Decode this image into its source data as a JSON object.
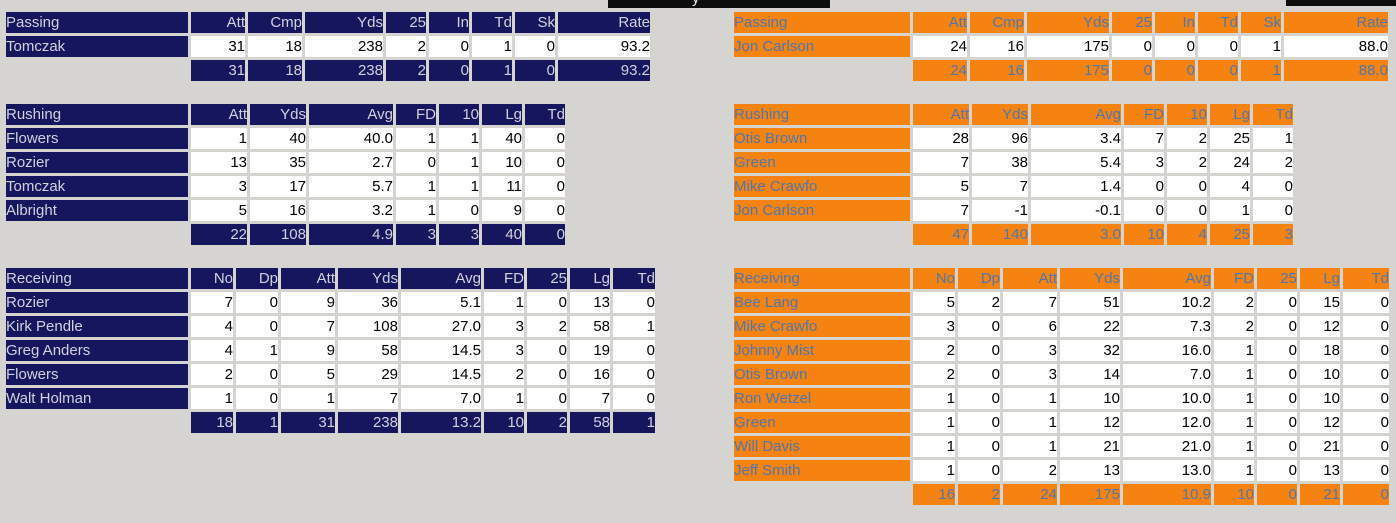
{
  "page": {
    "background_color": "#d6d4d1"
  },
  "scoreboard_bars": {
    "background_color": "#0d0d0d",
    "clipped_text_fragment": "y"
  },
  "left_team": {
    "theme": {
      "accent_bg": "#16165f",
      "accent_text": "#d2d2dc",
      "cell_bg": "#ffffff",
      "cell_text": "#000000"
    },
    "passing": {
      "label": "Passing",
      "columns": [
        "Att",
        "Cmp",
        "Yds",
        "25",
        "In",
        "Td",
        "Sk",
        "Rate"
      ],
      "rows": [
        {
          "name": "Tomczak",
          "values": [
            "31",
            "18",
            "238",
            "2",
            "0",
            "1",
            "0",
            "93.2"
          ]
        }
      ],
      "totals": [
        "31",
        "18",
        "238",
        "2",
        "0",
        "1",
        "0",
        "93.2"
      ]
    },
    "rushing": {
      "label": "Rushing",
      "columns": [
        "Att",
        "Yds",
        "Avg",
        "FD",
        "10",
        "Lg",
        "Td"
      ],
      "rows": [
        {
          "name": "Flowers",
          "values": [
            "1",
            "40",
            "40.0",
            "1",
            "1",
            "40",
            "0"
          ]
        },
        {
          "name": "Rozier",
          "values": [
            "13",
            "35",
            "2.7",
            "0",
            "1",
            "10",
            "0"
          ]
        },
        {
          "name": "Tomczak",
          "values": [
            "3",
            "17",
            "5.7",
            "1",
            "1",
            "11",
            "0"
          ]
        },
        {
          "name": "Albright",
          "values": [
            "5",
            "16",
            "3.2",
            "1",
            "0",
            "9",
            "0"
          ]
        }
      ],
      "totals": [
        "22",
        "108",
        "4.9",
        "3",
        "3",
        "40",
        "0"
      ]
    },
    "receiving": {
      "label": "Receiving",
      "columns": [
        "No",
        "Dp",
        "Att",
        "Yds",
        "Avg",
        "FD",
        "25",
        "Lg",
        "Td"
      ],
      "rows": [
        {
          "name": "Rozier",
          "values": [
            "7",
            "0",
            "9",
            "36",
            "5.1",
            "1",
            "0",
            "13",
            "0"
          ]
        },
        {
          "name": "Kirk Pendle",
          "values": [
            "4",
            "0",
            "7",
            "108",
            "27.0",
            "3",
            "2",
            "58",
            "1"
          ]
        },
        {
          "name": "Greg Anders",
          "values": [
            "4",
            "1",
            "9",
            "58",
            "14.5",
            "3",
            "0",
            "19",
            "0"
          ]
        },
        {
          "name": "Flowers",
          "values": [
            "2",
            "0",
            "5",
            "29",
            "14.5",
            "2",
            "0",
            "16",
            "0"
          ]
        },
        {
          "name": "Walt Holman",
          "values": [
            "1",
            "0",
            "1",
            "7",
            "7.0",
            "1",
            "0",
            "7",
            "0"
          ]
        }
      ],
      "totals": [
        "18",
        "1",
        "31",
        "238",
        "13.2",
        "10",
        "2",
        "58",
        "1"
      ]
    }
  },
  "right_team": {
    "theme": {
      "accent_bg": "#f6820f",
      "accent_text": "#4a78b4",
      "cell_bg": "#ffffff",
      "cell_text": "#000000"
    },
    "passing": {
      "label": "Passing",
      "columns": [
        "Att",
        "Cmp",
        "Yds",
        "25",
        "In",
        "Td",
        "Sk",
        "Rate"
      ],
      "rows": [
        {
          "name": "Jon Carlson",
          "values": [
            "24",
            "16",
            "175",
            "0",
            "0",
            "0",
            "1",
            "88.0"
          ]
        }
      ],
      "totals": [
        "24",
        "16",
        "175",
        "0",
        "0",
        "0",
        "1",
        "88.0"
      ]
    },
    "rushing": {
      "label": "Rushing",
      "columns": [
        "Att",
        "Yds",
        "Avg",
        "FD",
        "10",
        "Lg",
        "Td"
      ],
      "rows": [
        {
          "name": "Otis Brown",
          "values": [
            "28",
            "96",
            "3.4",
            "7",
            "2",
            "25",
            "1"
          ]
        },
        {
          "name": "Green",
          "values": [
            "7",
            "38",
            "5.4",
            "3",
            "2",
            "24",
            "2"
          ]
        },
        {
          "name": "Mike Crawfo",
          "values": [
            "5",
            "7",
            "1.4",
            "0",
            "0",
            "4",
            "0"
          ]
        },
        {
          "name": "Jon Carlson",
          "values": [
            "7",
            "-1",
            "-0.1",
            "0",
            "0",
            "1",
            "0"
          ]
        }
      ],
      "totals": [
        "47",
        "140",
        "3.0",
        "10",
        "4",
        "25",
        "3"
      ]
    },
    "receiving": {
      "label": "Receiving",
      "columns": [
        "No",
        "Dp",
        "Att",
        "Yds",
        "Avg",
        "FD",
        "25",
        "Lg",
        "Td"
      ],
      "rows": [
        {
          "name": "Bee Lang",
          "values": [
            "5",
            "2",
            "7",
            "51",
            "10.2",
            "2",
            "0",
            "15",
            "0"
          ]
        },
        {
          "name": "Mike Crawfo",
          "values": [
            "3",
            "0",
            "6",
            "22",
            "7.3",
            "2",
            "0",
            "12",
            "0"
          ]
        },
        {
          "name": "Johnny Mist",
          "values": [
            "2",
            "0",
            "3",
            "32",
            "16.0",
            "1",
            "0",
            "18",
            "0"
          ]
        },
        {
          "name": "Otis Brown",
          "values": [
            "2",
            "0",
            "3",
            "14",
            "7.0",
            "1",
            "0",
            "10",
            "0"
          ]
        },
        {
          "name": "Ron Wetzel",
          "values": [
            "1",
            "0",
            "1",
            "10",
            "10.0",
            "1",
            "0",
            "10",
            "0"
          ]
        },
        {
          "name": "Green",
          "values": [
            "1",
            "0",
            "1",
            "12",
            "12.0",
            "1",
            "0",
            "12",
            "0"
          ]
        },
        {
          "name": "Will Davis",
          "values": [
            "1",
            "0",
            "1",
            "21",
            "21.0",
            "1",
            "0",
            "21",
            "0"
          ]
        },
        {
          "name": "Jeff Smith",
          "values": [
            "1",
            "0",
            "2",
            "13",
            "13.0",
            "1",
            "0",
            "13",
            "0"
          ]
        }
      ],
      "totals": [
        "16",
        "2",
        "24",
        "175",
        "10.9",
        "10",
        "0",
        "21",
        "0"
      ]
    }
  }
}
